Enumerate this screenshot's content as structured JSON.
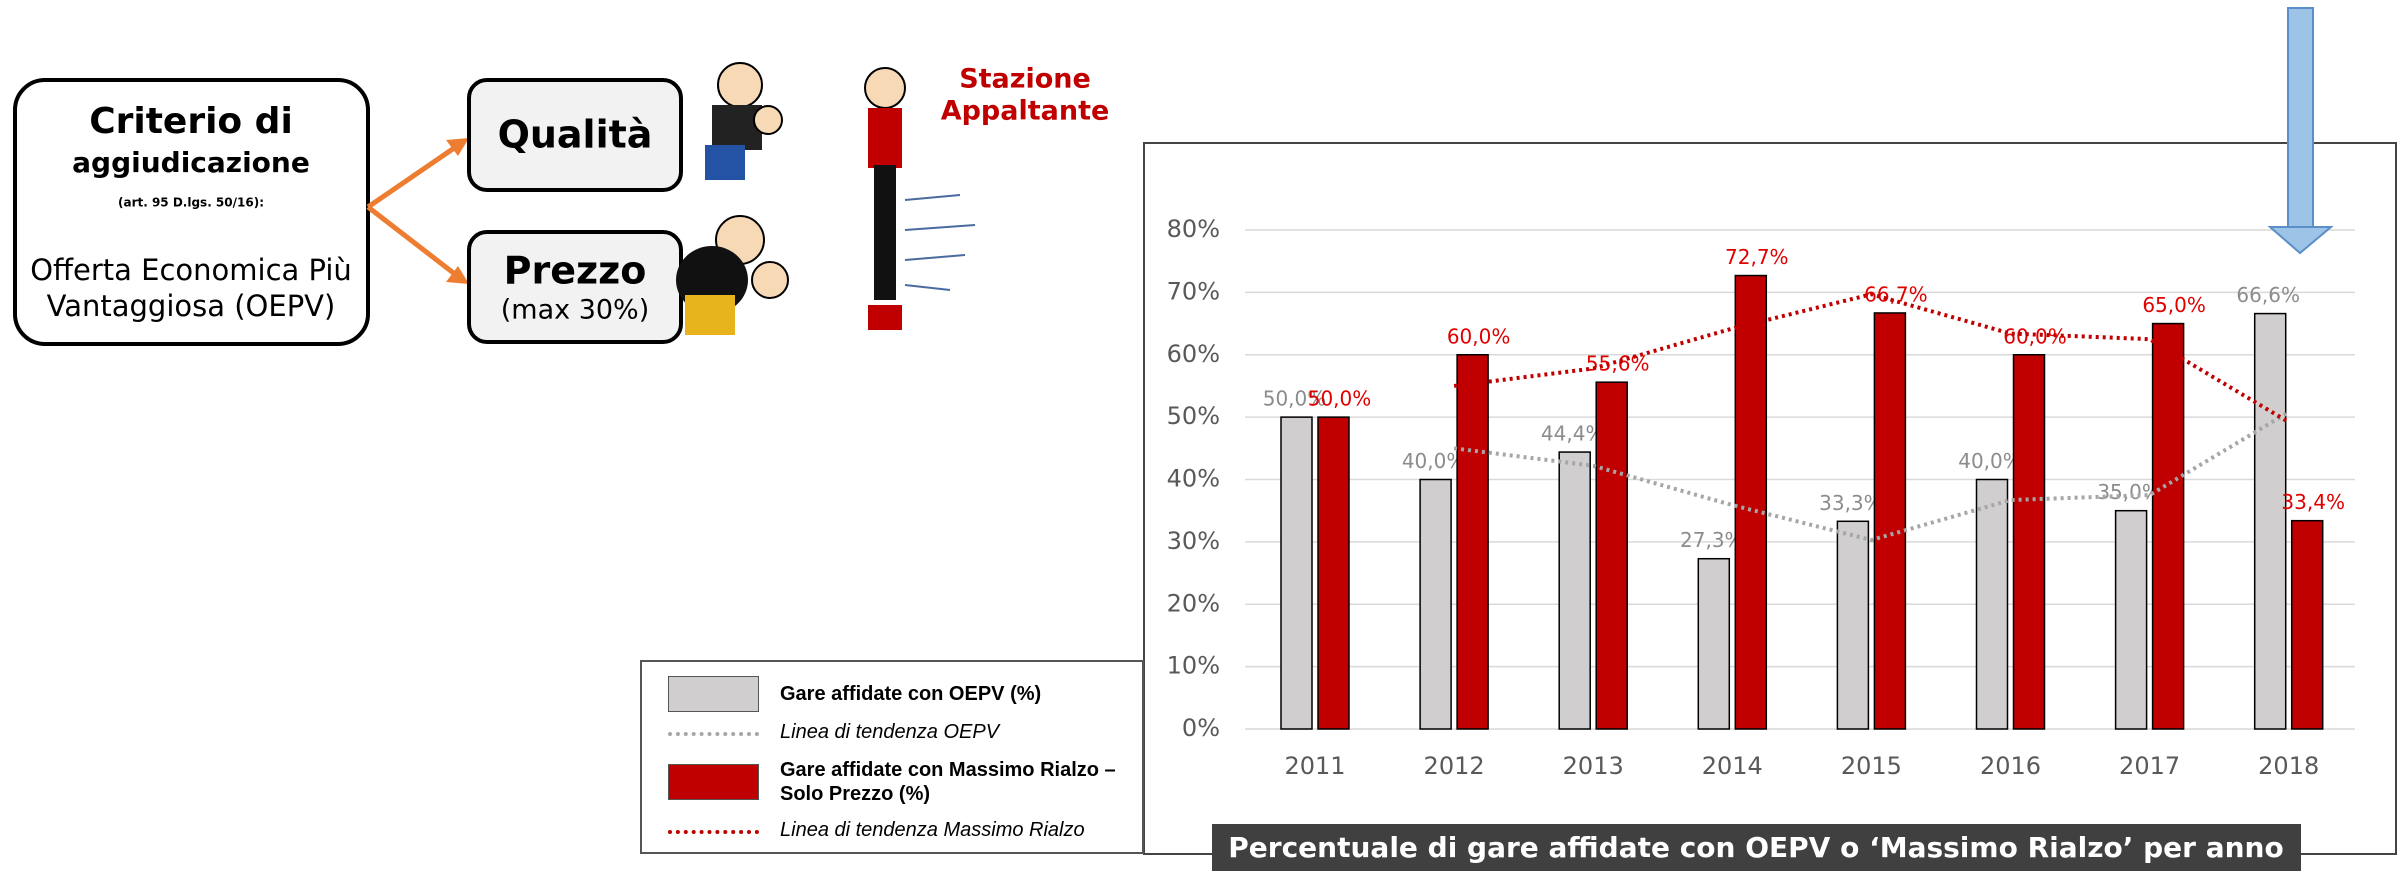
{
  "diagram": {
    "criterion_title": "Criterio di",
    "criterion_subtitle": "aggiudicazione",
    "criterion_ref": "(art. 95 D.lgs. 50/16):",
    "criterion_text_1": "Offerta Economica Più",
    "criterion_text_2": "Vantaggiosa (OEPV)",
    "quality": "Qualità",
    "price": "Prezzo",
    "price_note": "(max 30%)",
    "station_1": "Stazione",
    "station_2": "Appaltante"
  },
  "chart_data": {
    "type": "bar",
    "title": "Percentuale di gare affidate con OEPV o ‘Massimo Rialzo’ per anno",
    "categories": [
      "2011",
      "2012",
      "2013",
      "2014",
      "2015",
      "2016",
      "2017",
      "2018"
    ],
    "series": [
      {
        "name": "Gare affidate con OEPV (%)",
        "type": "bar",
        "color": "#d0cece",
        "label_color": "#8c8c8c",
        "values": [
          50,
          40,
          44.4,
          27.3,
          33.3,
          40,
          35,
          66.6
        ],
        "value_labels": [
          "50,0%",
          "40,0%",
          "44,4%",
          "27,3%",
          "33,3%",
          "40,0%",
          "35,0%",
          "66,6%"
        ]
      },
      {
        "name": "Linea di tendenza OEPV",
        "type": "line",
        "color": "#a6a6a6",
        "values": [
          null,
          45,
          42.2,
          35.9,
          30.3,
          36.7,
          37.5,
          50.8
        ]
      },
      {
        "name": "Gare affidate con Massimo Rialzo – Solo Prezzo (%)",
        "type": "bar",
        "color": "#c00000",
        "label_color": "#e00000",
        "values": [
          50,
          60,
          55.6,
          72.7,
          66.7,
          60,
          65,
          33.4
        ],
        "value_labels": [
          "50,0%",
          "60,0%",
          "55,6%",
          "72,7%",
          "66,7%",
          "60,0%",
          "65,0%",
          "33,4%"
        ]
      },
      {
        "name": "Linea di tendenza Massimo Rialzo",
        "type": "line",
        "color": "#c00000",
        "values": [
          null,
          55,
          57.8,
          64.2,
          69.7,
          63.4,
          62.5,
          49.2
        ]
      }
    ],
    "ylim": [
      0,
      80
    ],
    "yticks": [
      {
        "value": 0,
        "label": "0%"
      },
      {
        "value": 10,
        "label": "10%"
      },
      {
        "value": 20,
        "label": "20%"
      },
      {
        "value": 30,
        "label": "30%"
      },
      {
        "value": 40,
        "label": "40%"
      },
      {
        "value": 50,
        "label": "50%"
      },
      {
        "value": 60,
        "label": "60%"
      },
      {
        "value": 70,
        "label": "70%"
      },
      {
        "value": 80,
        "label": "80%"
      }
    ],
    "grid": true
  }
}
